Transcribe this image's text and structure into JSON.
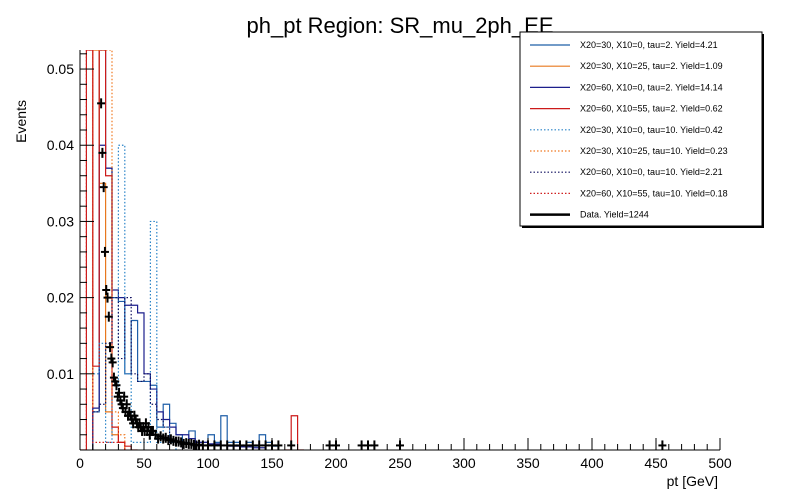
{
  "chart_data": {
    "type": "histogram",
    "title": "ph_pt Region: SR_mu_2ph_EE",
    "xlabel": "pt [GeV]",
    "ylabel": "Events",
    "xlim": [
      0,
      500
    ],
    "ylim": [
      0,
      0.0525
    ],
    "bin_width": 5,
    "x_ticks": [
      0,
      50,
      100,
      150,
      200,
      250,
      300,
      350,
      400,
      450,
      500
    ],
    "y_ticks": [
      0.01,
      0.02,
      0.03,
      0.04,
      0.05
    ],
    "x_tick_labels": [
      "0",
      "50",
      "100",
      "150",
      "200",
      "250",
      "300",
      "350",
      "400",
      "450",
      "500"
    ],
    "y_tick_labels": [
      "0.01",
      "0.02",
      "0.03",
      "0.04",
      "0.05"
    ],
    "legend_position": "top-right",
    "series": [
      {
        "name": "X20=30, X10=0, tau=2. Yield=4.21",
        "color": "#1f5fa8",
        "style": "solid",
        "bins": [
          [
            10,
            15,
            0.005
          ],
          [
            15,
            20,
            0.0525
          ],
          [
            20,
            25,
            0.037
          ],
          [
            25,
            30,
            0.02
          ],
          [
            30,
            35,
            0.0195
          ],
          [
            35,
            40,
            0.01
          ],
          [
            40,
            45,
            0.017
          ],
          [
            45,
            50,
            0.009
          ],
          [
            50,
            55,
            0.009
          ],
          [
            55,
            60,
            0.0085
          ],
          [
            60,
            65,
            0.003
          ],
          [
            65,
            70,
            0.006
          ],
          [
            70,
            75,
            0.0035
          ],
          [
            75,
            80,
            0.002
          ],
          [
            80,
            85,
            0.001
          ],
          [
            85,
            90,
            0.0025
          ],
          [
            90,
            95,
            0.001
          ],
          [
            95,
            100,
            0.001
          ],
          [
            100,
            105,
            0.002
          ],
          [
            105,
            110,
            0.001
          ],
          [
            110,
            115,
            0.0045
          ],
          [
            115,
            120,
            0.001
          ],
          [
            120,
            125,
            0.001
          ],
          [
            125,
            130,
            0.0005
          ],
          [
            130,
            135,
            0.001
          ],
          [
            135,
            140,
            0.0005
          ],
          [
            140,
            145,
            0.002
          ],
          [
            145,
            150,
            0.001
          ],
          [
            150,
            155,
            0.0005
          ]
        ]
      },
      {
        "name": "X20=30, X10=25, tau=2. Yield=1.09",
        "color": "#e8781e",
        "style": "solid",
        "bins": [
          [
            10,
            15,
            0.0525
          ],
          [
            15,
            20,
            0.035
          ],
          [
            20,
            25,
            0.005
          ],
          [
            25,
            30,
            0.002
          ],
          [
            30,
            35,
            0.001
          ]
        ]
      },
      {
        "name": "X20=60, X10=0, tau=2. Yield=14.14",
        "color": "#1c1f8c",
        "style": "solid",
        "bins": [
          [
            10,
            15,
            0.0055
          ],
          [
            15,
            20,
            0.04
          ],
          [
            20,
            25,
            0.037
          ],
          [
            25,
            30,
            0.021
          ],
          [
            30,
            35,
            0.02
          ],
          [
            35,
            40,
            0.019
          ],
          [
            40,
            45,
            0.019
          ],
          [
            45,
            50,
            0.018
          ],
          [
            50,
            55,
            0.01
          ],
          [
            55,
            60,
            0.008
          ],
          [
            60,
            65,
            0.005
          ],
          [
            65,
            70,
            0.004
          ],
          [
            70,
            75,
            0.003
          ],
          [
            75,
            80,
            0.002
          ],
          [
            80,
            85,
            0.002
          ],
          [
            85,
            90,
            0.0015
          ],
          [
            90,
            95,
            0.001
          ],
          [
            95,
            100,
            0.001
          ],
          [
            100,
            105,
            0.0008
          ],
          [
            105,
            110,
            0.0008
          ],
          [
            110,
            115,
            0.0006
          ],
          [
            115,
            120,
            0.0005
          ],
          [
            120,
            125,
            0.0005
          ],
          [
            125,
            130,
            0.0004
          ],
          [
            130,
            135,
            0.0004
          ],
          [
            135,
            140,
            0.0003
          ],
          [
            140,
            145,
            0.0003
          ]
        ]
      },
      {
        "name": "X20=60, X10=55, tau=2. Yield=0.62",
        "color": "#cc1a1a",
        "style": "solid",
        "bins": [
          [
            0,
            5,
            0.0
          ],
          [
            5,
            10,
            0.0525
          ],
          [
            10,
            15,
            0.011
          ],
          [
            15,
            20,
            0.0525
          ],
          [
            20,
            25,
            0.036
          ],
          [
            25,
            30,
            0.003
          ],
          [
            30,
            35,
            0.001
          ],
          [
            35,
            40,
            0.0005
          ],
          [
            40,
            45,
            0.0
          ],
          [
            160,
            165,
            0.0
          ],
          [
            165,
            170,
            0.0045
          ],
          [
            170,
            175,
            0.0
          ]
        ]
      },
      {
        "name": "X20=30, X10=0, tau=10. Yield=0.42",
        "color": "#2a84c8",
        "style": "dotted",
        "bins": [
          [
            10,
            15,
            0.01
          ],
          [
            15,
            20,
            0.014
          ],
          [
            20,
            25,
            0.001
          ],
          [
            25,
            30,
            0.007
          ],
          [
            30,
            35,
            0.04
          ],
          [
            35,
            40,
            0.01
          ],
          [
            40,
            45,
            0.001
          ],
          [
            45,
            50,
            0.001
          ],
          [
            50,
            55,
            0.001
          ],
          [
            55,
            60,
            0.03
          ],
          [
            60,
            65,
            0.001
          ],
          [
            65,
            70,
            0.003
          ],
          [
            70,
            75,
            0.001
          ]
        ]
      },
      {
        "name": "X20=30, X10=25, tau=10. Yield=0.23",
        "color": "#f07820",
        "style": "dotted",
        "bins": [
          [
            10,
            15,
            0.0525
          ],
          [
            15,
            20,
            0.0525
          ],
          [
            20,
            25,
            0.0525
          ],
          [
            25,
            30,
            0.005
          ],
          [
            30,
            35,
            0.002
          ]
        ]
      },
      {
        "name": "X20=60, X10=0, tau=10. Yield=2.21",
        "color": "#101060",
        "style": "dotted",
        "bins": [
          [
            10,
            15,
            0.005
          ],
          [
            15,
            20,
            0.006
          ],
          [
            20,
            25,
            0.014
          ],
          [
            25,
            30,
            0.02
          ],
          [
            30,
            35,
            0.012
          ],
          [
            35,
            40,
            0.02
          ],
          [
            40,
            45,
            0.01
          ],
          [
            45,
            50,
            0.009
          ],
          [
            50,
            55,
            0.01
          ],
          [
            55,
            60,
            0.006
          ],
          [
            60,
            65,
            0.004
          ],
          [
            65,
            70,
            0.003
          ],
          [
            70,
            75,
            0.001
          ],
          [
            75,
            80,
            0.001
          ]
        ]
      },
      {
        "name": "X20=60, X10=55, tau=10. Yield=0.18",
        "color": "#d02020",
        "style": "dotted",
        "bins": [
          [
            5,
            10,
            0.0525
          ],
          [
            10,
            15,
            0.001
          ],
          [
            15,
            20,
            0.001
          ],
          [
            20,
            25,
            0.001
          ],
          [
            25,
            30,
            0.001
          ],
          [
            30,
            35,
            0.001
          ]
        ]
      }
    ],
    "data": {
      "name": "Data. Yield=1244",
      "color": "#000000",
      "points": [
        [
          16.5,
          0.0455
        ],
        [
          17.5,
          0.039
        ],
        [
          18.5,
          0.0345
        ],
        [
          19.5,
          0.026
        ],
        [
          20.5,
          0.021
        ],
        [
          21.5,
          0.02
        ],
        [
          22.5,
          0.0175
        ],
        [
          23.5,
          0.0135
        ],
        [
          24.5,
          0.012
        ],
        [
          25.5,
          0.0115
        ],
        [
          26.5,
          0.0095
        ],
        [
          27.5,
          0.009
        ],
        [
          28.5,
          0.0085
        ],
        [
          29.5,
          0.007
        ],
        [
          30.5,
          0.0075
        ],
        [
          31.5,
          0.0065
        ],
        [
          32.5,
          0.006
        ],
        [
          33.5,
          0.0055
        ],
        [
          34.5,
          0.007
        ],
        [
          35.5,
          0.005
        ],
        [
          36.5,
          0.006
        ],
        [
          37.5,
          0.0045
        ],
        [
          38.5,
          0.005
        ],
        [
          39.5,
          0.0045
        ],
        [
          40.5,
          0.004
        ],
        [
          41.5,
          0.0035
        ],
        [
          42.5,
          0.0045
        ],
        [
          43.5,
          0.004
        ],
        [
          44.5,
          0.0035
        ],
        [
          45.5,
          0.003
        ],
        [
          46.5,
          0.0035
        ],
        [
          47.5,
          0.003
        ],
        [
          48.5,
          0.0025
        ],
        [
          49.5,
          0.003
        ],
        [
          50.5,
          0.0025
        ],
        [
          51.5,
          0.0035
        ],
        [
          52.5,
          0.0025
        ],
        [
          53.5,
          0.003
        ],
        [
          54.5,
          0.002
        ],
        [
          55.5,
          0.0025
        ],
        [
          57,
          0.0025
        ],
        [
          59,
          0.002
        ],
        [
          61,
          0.0015
        ],
        [
          63,
          0.0018
        ],
        [
          65,
          0.0015
        ],
        [
          67,
          0.0016
        ],
        [
          69,
          0.0013
        ],
        [
          71,
          0.0014
        ],
        [
          73,
          0.0012
        ],
        [
          75,
          0.0011
        ],
        [
          77,
          0.0011
        ],
        [
          79,
          0.001
        ],
        [
          81,
          0.0008
        ],
        [
          83,
          0.0009
        ],
        [
          85,
          0.0008
        ],
        [
          87,
          0.0008
        ],
        [
          89,
          0.0007
        ],
        [
          91,
          0.0006
        ],
        [
          93,
          0.0007
        ],
        [
          96,
          0.0006
        ],
        [
          100,
          0.0006
        ],
        [
          105,
          0.0006
        ],
        [
          110,
          0.0006
        ],
        [
          115,
          0.0006
        ],
        [
          120,
          0.0006
        ],
        [
          125,
          0.0006
        ],
        [
          130,
          0.0006
        ],
        [
          135,
          0.0006
        ],
        [
          140,
          0.0006
        ],
        [
          145,
          0.0006
        ],
        [
          150,
          0.0006
        ],
        [
          155,
          0.0006
        ],
        [
          165,
          0.0006
        ],
        [
          195,
          0.0006
        ],
        [
          200,
          0.0006
        ],
        [
          220,
          0.0006
        ],
        [
          225,
          0.0006
        ],
        [
          230,
          0.0006
        ],
        [
          250,
          0.0006
        ],
        [
          455,
          0.0006
        ]
      ]
    }
  }
}
